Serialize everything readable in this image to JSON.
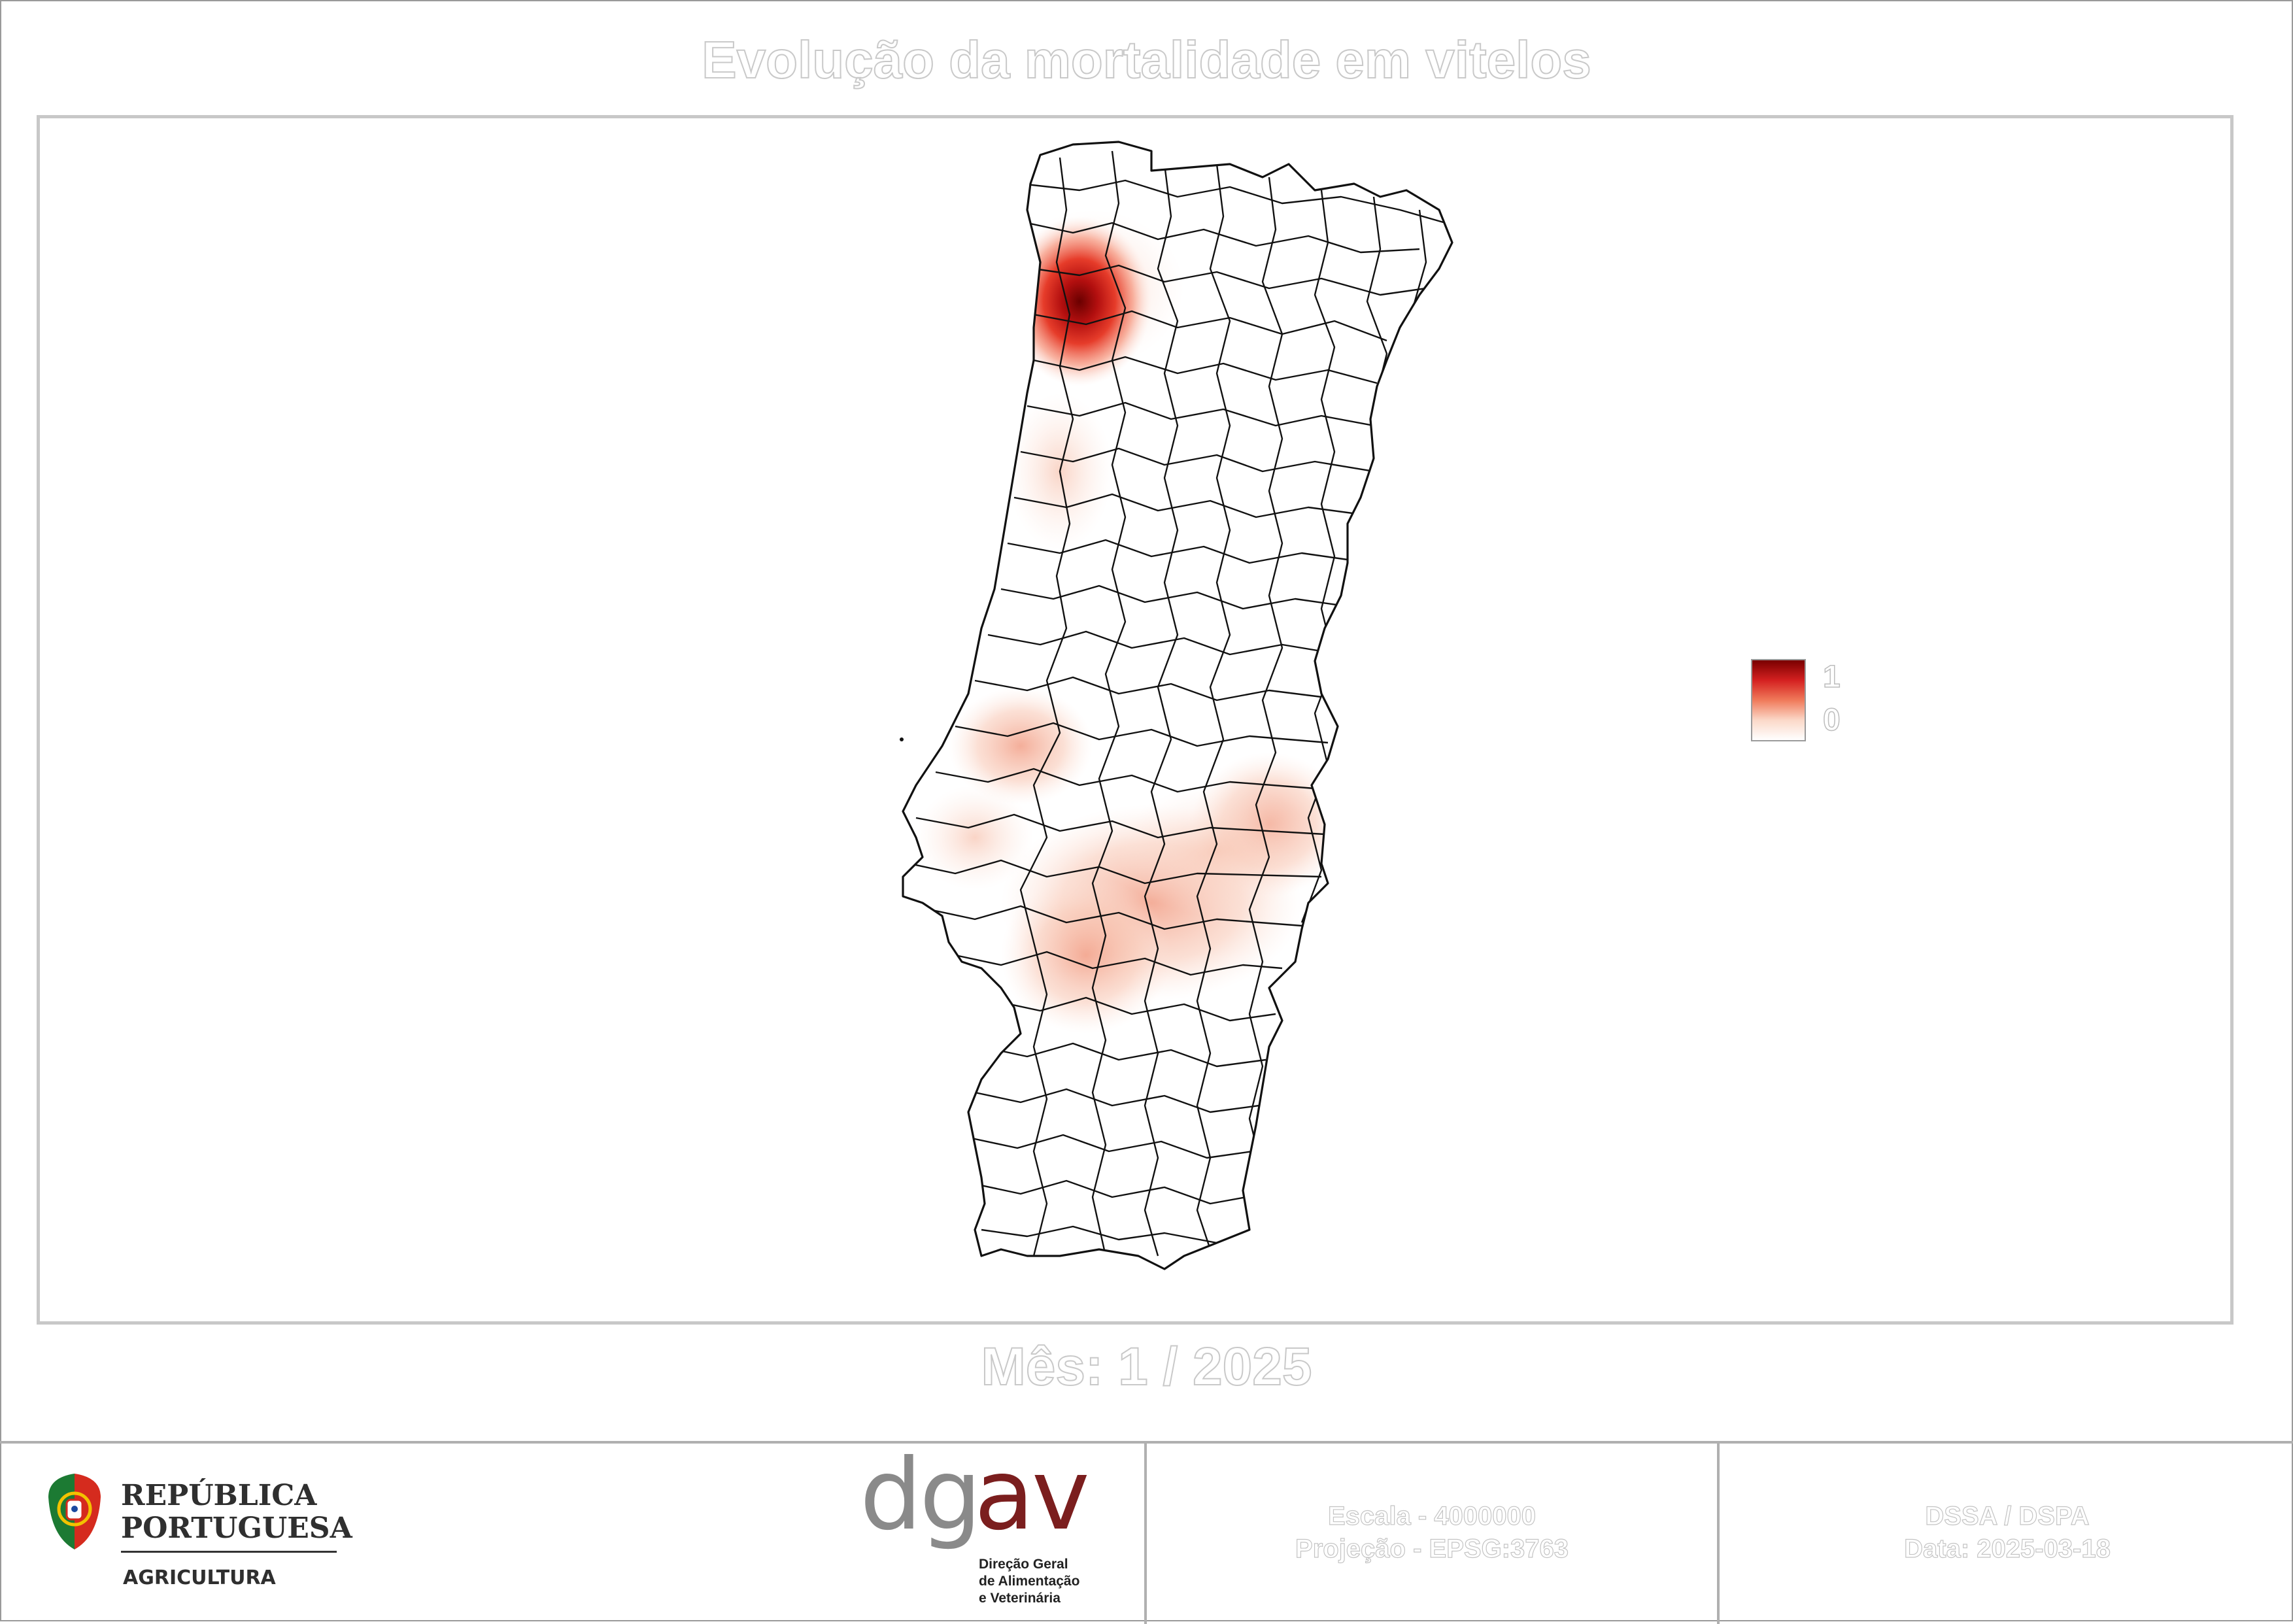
{
  "title": "Evolução da mortalidade em vitelos",
  "subtitle": "Mês: 1 / 2025",
  "legend": {
    "max_label": "1",
    "min_label": "0",
    "gradient_colors": [
      "#7a0000",
      "#d42020",
      "#f07a5a",
      "#fbd8c8",
      "#ffffff"
    ]
  },
  "footer": {
    "logo_republica": {
      "line1": "REPÚBLICA",
      "line2": "PORTUGUESA",
      "line3": "AGRICULTURA"
    },
    "logo_dgav": {
      "acronym_gray": "dg",
      "acronym_red": "av",
      "line1": "Direção Geral",
      "line2": "de Alimentação",
      "line3": "e Veterinária"
    },
    "scale_label": "Escala - 4000000",
    "projection_label": "Projeção - EPSG:3763",
    "department_label": "DSSA / DSPA",
    "date_label": "Data: 2025-03-18"
  },
  "colors": {
    "hotspot_dark": "#7a0000",
    "hotspot_mid": "#d42020",
    "hotspot_light": "#f4a58c",
    "dgav_red": "#7b1e1e",
    "dgav_gray": "#8a8a8a"
  }
}
